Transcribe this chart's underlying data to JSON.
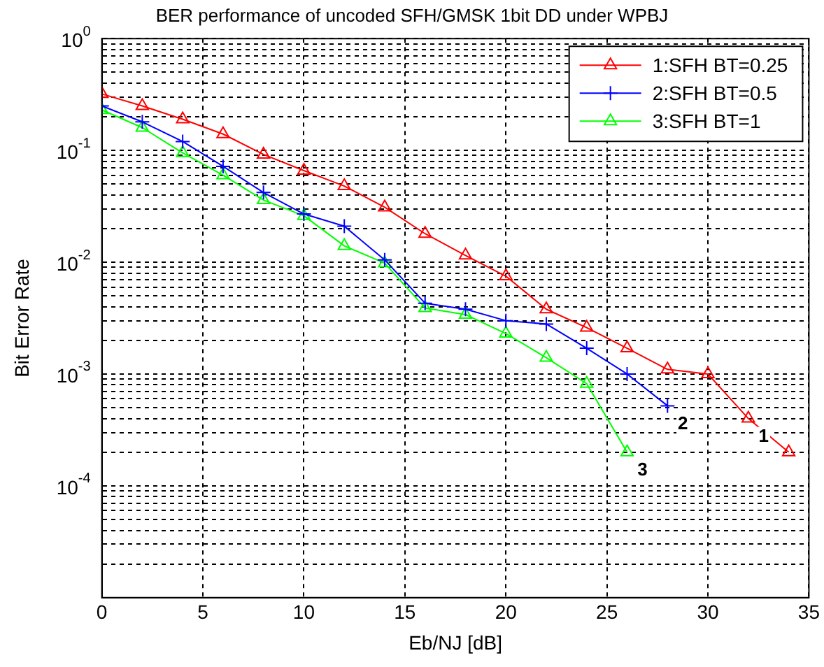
{
  "chart_data": {
    "type": "line",
    "title": "BER performance of uncoded SFH/GMSK 1bit DD under WPBJ",
    "xlabel": "Eb/NJ [dB]",
    "ylabel": "Bit Error Rate",
    "xlim": [
      0,
      35
    ],
    "xticks": [
      0,
      5,
      10,
      15,
      20,
      25,
      30,
      35
    ],
    "ylim": [
      1e-05,
      1
    ],
    "yticks": [
      {
        "value": 1e-05,
        "label": null
      },
      {
        "value": 2e-05,
        "label": null
      },
      {
        "value": 3e-05,
        "label": null
      },
      {
        "value": 4e-05,
        "label": null
      },
      {
        "value": 5e-05,
        "label": null
      },
      {
        "value": 6e-05,
        "label": null
      },
      {
        "value": 7e-05,
        "label": null
      },
      {
        "value": 8e-05,
        "label": null
      },
      {
        "value": 9e-05,
        "label": null
      },
      {
        "value": 0.0001,
        "label": "10$^{-4}$"
      },
      {
        "value": 0.0002,
        "label": null
      },
      {
        "value": 0.0003,
        "label": null
      },
      {
        "value": 0.0004,
        "label": null
      },
      {
        "value": 0.0005,
        "label": null
      },
      {
        "value": 0.0006,
        "label": null
      },
      {
        "value": 0.0007,
        "label": null
      },
      {
        "value": 0.0008,
        "label": null
      },
      {
        "value": 0.0009,
        "label": null
      },
      {
        "value": 0.001,
        "label": "10$^{-3}$"
      },
      {
        "value": 0.002,
        "label": null
      },
      {
        "value": 0.003,
        "label": null
      },
      {
        "value": 0.004,
        "label": null
      },
      {
        "value": 0.005,
        "label": null
      },
      {
        "value": 0.006,
        "label": null
      },
      {
        "value": 0.007,
        "label": null
      },
      {
        "value": 0.008,
        "label": null
      },
      {
        "value": 0.009,
        "label": null
      },
      {
        "value": 0.01,
        "label": "10$^{-2}$"
      },
      {
        "value": 0.02,
        "label": null
      },
      {
        "value": 0.03,
        "label": null
      },
      {
        "value": 0.04,
        "label": null
      },
      {
        "value": 0.05,
        "label": null
      },
      {
        "value": 0.06,
        "label": null
      },
      {
        "value": 0.07,
        "label": null
      },
      {
        "value": 0.08,
        "label": null
      },
      {
        "value": 0.09,
        "label": null
      },
      {
        "value": 0.1,
        "label": "10$^{-1}$"
      },
      {
        "value": 0.2,
        "label": null
      },
      {
        "value": 0.3,
        "label": null
      },
      {
        "value": 0.4,
        "label": null
      },
      {
        "value": 0.5,
        "label": null
      },
      {
        "value": 0.6,
        "label": null
      },
      {
        "value": 0.7,
        "label": null
      },
      {
        "value": 0.8,
        "label": null
      },
      {
        "value": 0.9,
        "label": null
      },
      {
        "value": 1,
        "label": "10$^{0}$"
      }
    ],
    "log": "y",
    "grid": true,
    "legend": "top right",
    "line_style": "solid",
    "series": [
      {
        "name": "1:SFH BT=0.25",
        "color": "#ff0000",
        "marker": "triangle",
        "x": [
          0,
          2,
          4,
          6,
          8,
          10,
          12,
          14,
          16,
          18,
          20,
          22,
          24,
          26,
          28,
          30,
          32,
          34
        ],
        "values": [
          0.32,
          0.25,
          0.19,
          0.14,
          0.092,
          0.066,
          0.048,
          0.031,
          0.018,
          0.0115,
          0.0075,
          0.0038,
          0.0026,
          0.0017,
          0.0011,
          0.001,
          0.0004,
          0.0002
        ]
      },
      {
        "name": "2:SFH BT=0.5",
        "color": "#0000ff",
        "marker": "cross",
        "x": [
          0,
          2,
          4,
          6,
          8,
          10,
          12,
          14,
          16,
          18,
          20,
          22,
          24,
          26,
          28
        ],
        "values": [
          0.25,
          0.18,
          0.12,
          0.072,
          0.042,
          0.027,
          0.021,
          0.0105,
          0.0043,
          0.0038,
          0.003,
          0.0028,
          0.0017,
          0.001,
          0.00052
        ]
      },
      {
        "name": "3:SFH BT=1",
        "color": "#00ff00",
        "marker": "triangle",
        "x": [
          0,
          2,
          4,
          6,
          8,
          10,
          12,
          14,
          16,
          18,
          20,
          22,
          24,
          26
        ],
        "values": [
          0.23,
          0.16,
          0.095,
          0.06,
          0.036,
          0.026,
          0.014,
          0.0098,
          0.0039,
          0.0034,
          0.0023,
          0.0014,
          0.00082,
          0.0002
        ]
      }
    ],
    "annotations": [
      {
        "text": "1",
        "x": 32,
        "y": 0.0004
      },
      {
        "text": "2",
        "x": 28,
        "y": 0.00052
      },
      {
        "text": "3",
        "x": 26,
        "y": 0.0002
      }
    ]
  }
}
